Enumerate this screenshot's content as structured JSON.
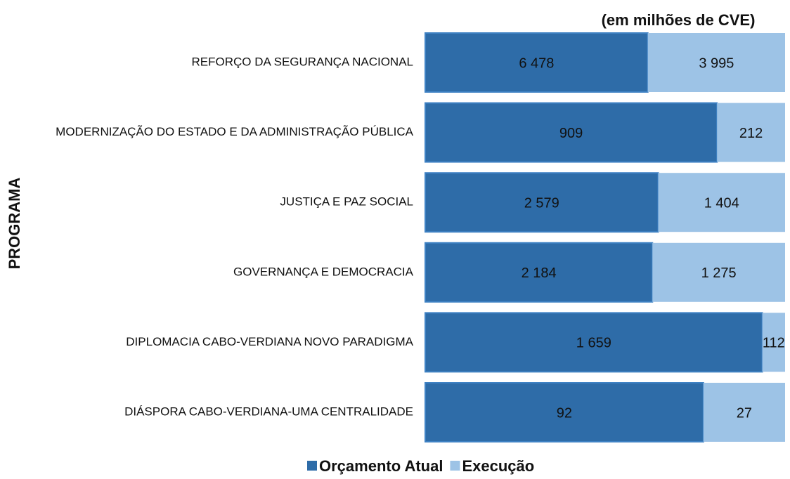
{
  "chart_data": {
    "type": "bar",
    "orientation": "horizontal",
    "stacked": "percent",
    "title": "(em milhões de CVE)",
    "y_label": "PROGRAMA",
    "categories": [
      "REFORÇO DA SEGURANÇA NACIONAL",
      "MODERNIZAÇÃO DO ESTADO E DA ADMINISTRAÇÃO PÚBLICA",
      "JUSTIÇA E PAZ SOCIAL",
      "GOVERNANÇA E DEMOCRACIA",
      "DIPLOMACIA CABO-VERDIANA NOVO PARADIGMA",
      "DIÁSPORA CABO-VERDIANA-UMA CENTRALIDADE"
    ],
    "series": [
      {
        "name": "Orçamento Atual",
        "color": "#2e6ca8",
        "values": [
          6478,
          909,
          2579,
          2184,
          1659,
          92
        ],
        "value_labels": [
          "6 478",
          "909",
          "2 579",
          "2 184",
          "1 659",
          "92"
        ]
      },
      {
        "name": "Execução",
        "color": "#9dc3e6",
        "values": [
          3995,
          212,
          1404,
          1275,
          112,
          27
        ],
        "value_labels": [
          "3 995",
          "212",
          "1 404",
          "1 275",
          "112",
          "27"
        ]
      }
    ],
    "legend": "bottom"
  }
}
